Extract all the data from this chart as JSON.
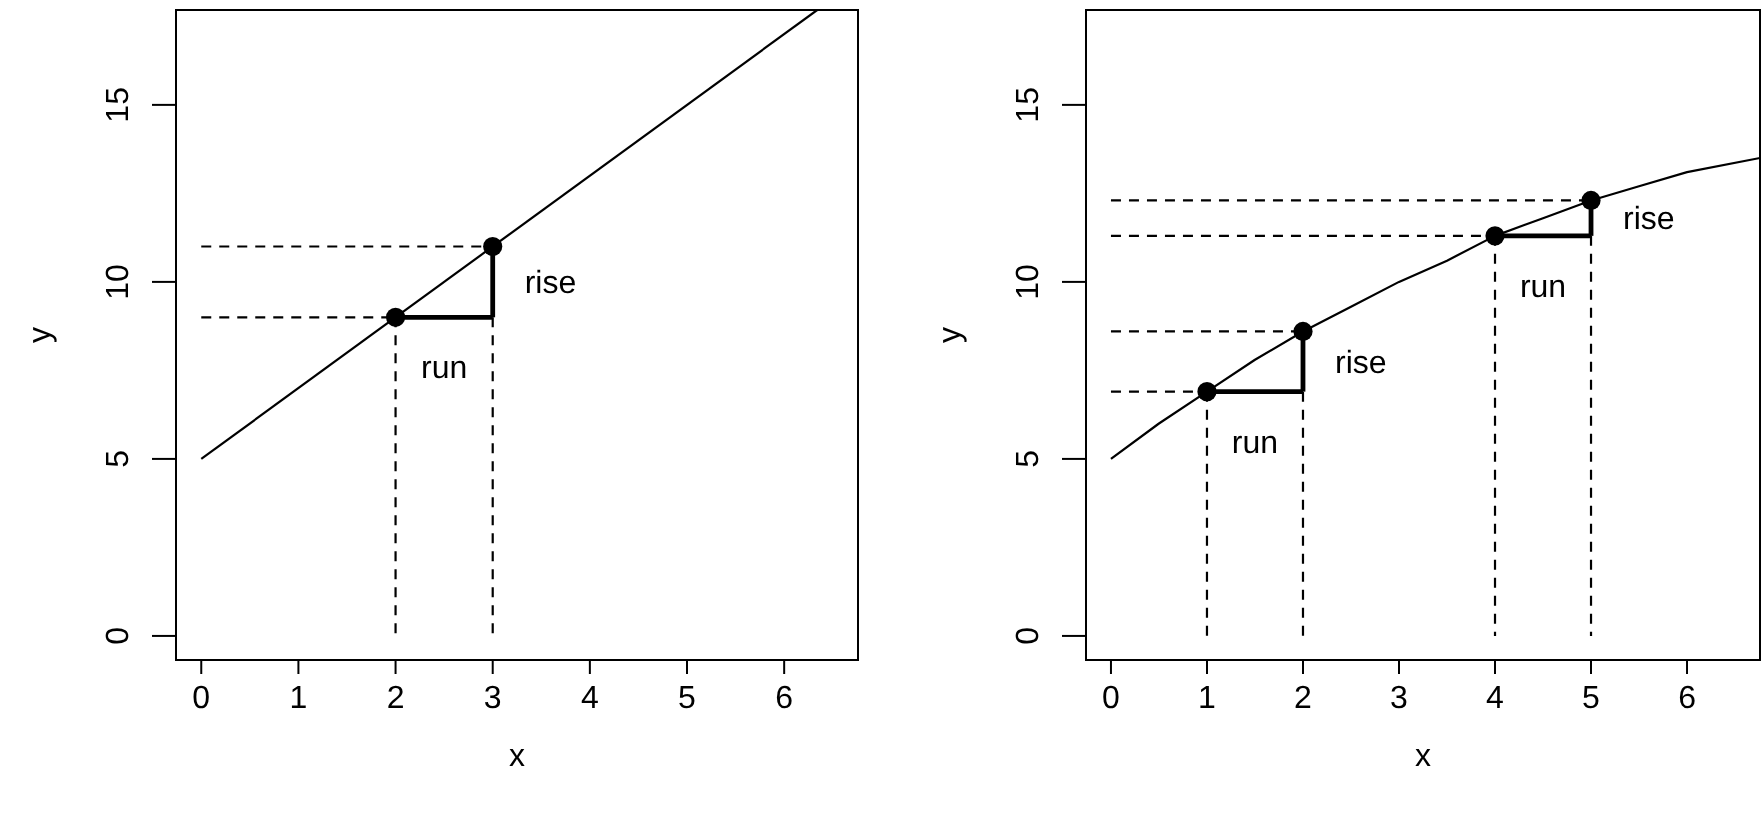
{
  "chart_data": [
    {
      "type": "line",
      "xlabel": "x",
      "ylabel": "y",
      "xlim": [
        -0.26,
        6.76
      ],
      "ylim": [
        -0.68,
        17.68
      ],
      "xticks": [
        0,
        1,
        2,
        3,
        4,
        5,
        6
      ],
      "yticks": [
        0,
        5,
        10,
        15
      ],
      "grid": false,
      "series": [
        {
          "color": "#000000",
          "line_style": "solid",
          "x": [
            0,
            6.34
          ],
          "values": [
            5,
            17.68
          ]
        },
        {
          "color": "#000000",
          "line_style": "dashed",
          "x": [
            0,
            2
          ],
          "values": [
            9,
            9
          ]
        },
        {
          "color": "#000000",
          "line_style": "dashed",
          "x": [
            2,
            2
          ],
          "values": [
            9,
            0
          ]
        },
        {
          "color": "#000000",
          "line_style": "dashed",
          "x": [
            0,
            3
          ],
          "values": [
            11,
            11
          ]
        },
        {
          "color": "#000000",
          "line_style": "dashed",
          "x": [
            3,
            3
          ],
          "values": [
            9,
            0
          ]
        },
        {
          "color": "#000000",
          "line_style": "solid",
          "x": [
            2,
            3
          ],
          "values": [
            9,
            9
          ]
        },
        {
          "color": "#000000",
          "line_style": "solid",
          "x": [
            3,
            3
          ],
          "values": [
            9,
            11
          ]
        },
        {
          "type": "scatter",
          "color": "#000000",
          "marker": "circle",
          "x": [
            2,
            3
          ],
          "values": [
            9,
            11
          ]
        }
      ],
      "annotations": [
        {
          "text": "rise",
          "x": 3,
          "y": 10
        },
        {
          "text": "run",
          "x": 2.5,
          "y": 9
        }
      ]
    },
    {
      "type": "line",
      "xlabel": "x",
      "ylabel": "y",
      "xlim": [
        -0.26,
        6.76
      ],
      "ylim": [
        -0.68,
        17.68
      ],
      "xticks": [
        0,
        1,
        2,
        3,
        4,
        5,
        6
      ],
      "yticks": [
        0,
        5,
        10,
        15
      ],
      "grid": false,
      "series": [
        {
          "color": "#000000",
          "line_style": "solid",
          "x": [
            0,
            0.5,
            1,
            1.5,
            2,
            2.5,
            3,
            3.5,
            4,
            4.5,
            5,
            5.5,
            6,
            6.76
          ],
          "values": [
            5,
            6,
            6.9,
            7.8,
            8.6,
            9.3,
            10,
            10.6,
            11.3,
            11.8,
            12.3,
            12.7,
            13.1,
            13.5
          ]
        },
        {
          "color": "#000000",
          "line_style": "dashed",
          "x": [
            0,
            1
          ],
          "values": [
            6.9,
            6.9
          ]
        },
        {
          "color": "#000000",
          "line_style": "dashed",
          "x": [
            1,
            1
          ],
          "values": [
            6.9,
            0
          ]
        },
        {
          "color": "#000000",
          "line_style": "dashed",
          "x": [
            0,
            2
          ],
          "values": [
            8.6,
            8.6
          ]
        },
        {
          "color": "#000000",
          "line_style": "dashed",
          "x": [
            2,
            2
          ],
          "values": [
            6.9,
            0
          ]
        },
        {
          "color": "#000000",
          "line_style": "dashed",
          "x": [
            0,
            4
          ],
          "values": [
            11.3,
            11.3
          ]
        },
        {
          "color": "#000000",
          "line_style": "dashed",
          "x": [
            4,
            4
          ],
          "values": [
            11.3,
            0
          ]
        },
        {
          "color": "#000000",
          "line_style": "dashed",
          "x": [
            0,
            5
          ],
          "values": [
            12.3,
            12.3
          ]
        },
        {
          "color": "#000000",
          "line_style": "dashed",
          "x": [
            5,
            5
          ],
          "values": [
            11.3,
            0
          ]
        },
        {
          "color": "#000000",
          "line_style": "solid",
          "x": [
            1,
            2
          ],
          "values": [
            6.9,
            6.9
          ]
        },
        {
          "color": "#000000",
          "line_style": "solid",
          "x": [
            2,
            2
          ],
          "values": [
            6.9,
            8.6
          ]
        },
        {
          "color": "#000000",
          "line_style": "solid",
          "x": [
            4,
            5
          ],
          "values": [
            11.3,
            11.3
          ]
        },
        {
          "color": "#000000",
          "line_style": "solid",
          "x": [
            5,
            5
          ],
          "values": [
            11.3,
            12.3
          ]
        },
        {
          "type": "scatter",
          "color": "#000000",
          "marker": "circle",
          "x": [
            1,
            2,
            4,
            5
          ],
          "values": [
            6.9,
            8.6,
            11.3,
            12.3
          ]
        }
      ],
      "annotations": [
        {
          "text": "run",
          "x": 1.5,
          "y": 6.9
        },
        {
          "text": "rise",
          "x": 2,
          "y": 7.75
        },
        {
          "text": "run",
          "x": 4.5,
          "y": 11.3
        },
        {
          "text": "rise",
          "x": 5,
          "y": 11.8
        }
      ]
    }
  ]
}
